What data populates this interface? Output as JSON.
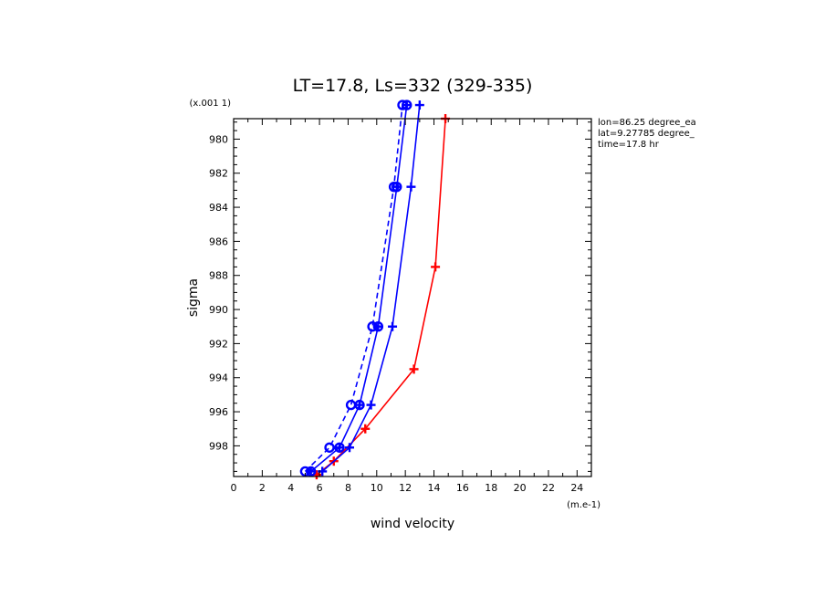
{
  "chart_data": {
    "type": "line",
    "title": "LT=17.8, Ls=332 (329-335)",
    "xlabel": "wind velocity",
    "ylabel": "sigma",
    "x_units": "(m.e-1)",
    "y_units": "(x.001 1)",
    "xlim": [
      0,
      25
    ],
    "ylim": [
      999.8,
      978.8
    ],
    "x_ticks": [
      0,
      2,
      4,
      6,
      8,
      10,
      12,
      14,
      16,
      18,
      20,
      22,
      24
    ],
    "y_ticks": [
      980,
      982,
      984,
      986,
      988,
      990,
      992,
      994,
      996,
      998
    ],
    "grid": false,
    "annotations": [
      "lon=86.25 degree_ea",
      "lat=9.27785 degree_",
      "time=17.8 hr"
    ],
    "series": [
      {
        "color": "#ff0000",
        "style": "solid",
        "marker": "plus",
        "points": [
          [
            5.8,
            999.7
          ],
          [
            7.0,
            998.9
          ],
          [
            9.2,
            997.0
          ],
          [
            12.6,
            993.5
          ],
          [
            14.1,
            987.5
          ],
          [
            14.8,
            978.8
          ]
        ]
      },
      {
        "color": "#0000ff",
        "style": "solid",
        "marker": "plus",
        "points": [
          [
            6.2,
            999.5
          ],
          [
            8.1,
            998.1
          ],
          [
            9.6,
            995.6
          ],
          [
            11.1,
            991.0
          ],
          [
            12.4,
            982.8
          ],
          [
            13.0,
            978.0
          ]
        ]
      },
      {
        "color": "#0000ff",
        "style": "solid",
        "marker": "circle-plus",
        "points": [
          [
            5.4,
            999.5
          ],
          [
            7.4,
            998.1
          ],
          [
            8.8,
            995.6
          ],
          [
            10.1,
            991.0
          ],
          [
            11.4,
            982.8
          ],
          [
            12.1,
            978.0
          ]
        ]
      },
      {
        "color": "#0000ff",
        "style": "dashed",
        "marker": "circle",
        "points": [
          [
            5.0,
            999.5
          ],
          [
            6.7,
            998.1
          ],
          [
            8.2,
            995.6
          ],
          [
            9.7,
            991.0
          ],
          [
            11.2,
            982.8
          ],
          [
            11.8,
            978.0
          ]
        ]
      }
    ]
  }
}
